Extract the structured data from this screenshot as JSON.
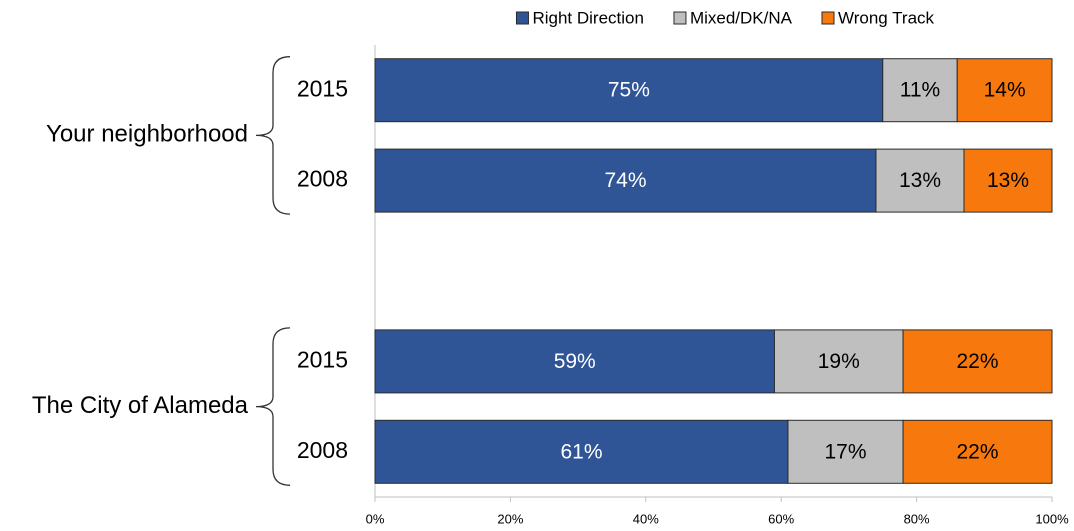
{
  "chart_data": {
    "type": "stacked_barh",
    "categories": [
      "2015",
      "2008",
      null,
      "2015",
      "2008"
    ],
    "groups": [
      {
        "name": "Your neighborhood",
        "span": [
          0,
          1
        ]
      },
      {
        "name": "The City of Alameda",
        "span": [
          3,
          4
        ]
      }
    ],
    "series": [
      {
        "name": "Right Direction",
        "color": "#2f5597",
        "label_color": "#ffffff",
        "values": [
          75,
          74,
          null,
          59,
          61
        ],
        "value_labels": [
          "75%",
          "74%",
          null,
          "59%",
          "61%"
        ]
      },
      {
        "name": "Mixed/DK/NA",
        "color": "#bfbfbf",
        "label_color": "#000000",
        "values": [
          11,
          13,
          null,
          19,
          17
        ],
        "value_labels": [
          "11%",
          "13%",
          null,
          "19%",
          "17%"
        ]
      },
      {
        "name": "Wrong Track",
        "color": "#f7790d",
        "label_color": "#000000",
        "values": [
          14,
          13,
          null,
          22,
          22
        ],
        "value_labels": [
          "14%",
          "13%",
          null,
          "22%",
          "22%"
        ]
      }
    ],
    "xlim": [
      0,
      100
    ],
    "xticks": [
      {
        "value": 0,
        "label": "0%"
      },
      {
        "value": 20,
        "label": "20%"
      },
      {
        "value": 40,
        "label": "40%"
      },
      {
        "value": 60,
        "label": "60%"
      },
      {
        "value": 80,
        "label": "80%"
      },
      {
        "value": 100,
        "label": "100%"
      }
    ],
    "legend": "top"
  }
}
